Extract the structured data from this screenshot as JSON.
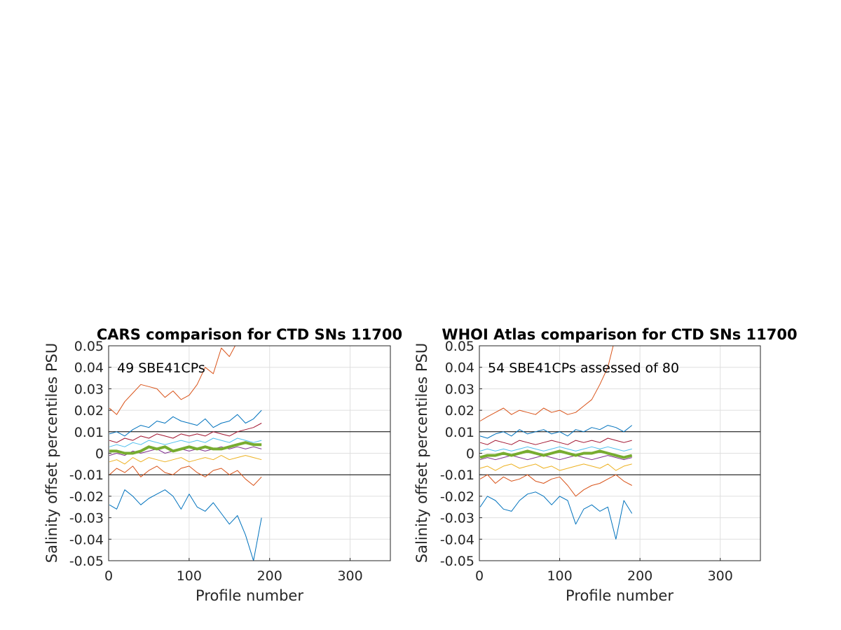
{
  "figure": {
    "background": "#ffffff"
  },
  "chart_data": [
    {
      "type": "line",
      "title": "CARS comparison for CTD SNs 11700",
      "annotation": "49 SBE41CPs",
      "xlabel": "Profile number",
      "ylabel": "Salinity offset percentiles PSU",
      "xlim": [
        0,
        350
      ],
      "ylim": [
        -0.05,
        0.05
      ],
      "xticks": [
        0,
        100,
        200,
        300
      ],
      "xtick_labels": [
        "0",
        "100",
        "200",
        "300"
      ],
      "yticks": [
        -0.05,
        -0.04,
        -0.03,
        -0.02,
        -0.01,
        0,
        0.01,
        0.02,
        0.03,
        0.04,
        0.05
      ],
      "ytick_labels": [
        "-0.05",
        "-0.04",
        "-0.03",
        "-0.02",
        "-0.01",
        "0",
        "0.01",
        "0.02",
        "0.03",
        "0.04",
        "0.05"
      ],
      "grid": true,
      "reference_lines": [
        -0.01,
        0.01
      ],
      "x": [
        1,
        10,
        20,
        30,
        40,
        50,
        60,
        70,
        80,
        90,
        100,
        110,
        120,
        130,
        140,
        150,
        160,
        170,
        180,
        190
      ],
      "series": [
        {
          "color": "#0072BD",
          "width": 1,
          "values": [
            -0.024,
            -0.026,
            -0.017,
            -0.02,
            -0.024,
            -0.021,
            -0.019,
            -0.017,
            -0.02,
            -0.026,
            -0.019,
            -0.025,
            -0.027,
            -0.023,
            -0.028,
            -0.033,
            -0.029,
            -0.038,
            -0.05,
            -0.03
          ]
        },
        {
          "color": "#D95319",
          "width": 1,
          "values": [
            -0.01,
            -0.007,
            -0.009,
            -0.006,
            -0.011,
            -0.008,
            -0.006,
            -0.009,
            -0.01,
            -0.007,
            -0.006,
            -0.009,
            -0.011,
            -0.008,
            -0.007,
            -0.01,
            -0.008,
            -0.012,
            -0.015,
            -0.011
          ]
        },
        {
          "color": "#EDB120",
          "width": 1,
          "values": [
            -0.004,
            -0.003,
            -0.005,
            -0.002,
            -0.004,
            -0.002,
            -0.003,
            -0.004,
            -0.003,
            -0.002,
            -0.004,
            -0.003,
            -0.002,
            -0.003,
            -0.001,
            -0.003,
            -0.002,
            -0.001,
            -0.002,
            -0.003
          ]
        },
        {
          "color": "#7E2F8E",
          "width": 1,
          "values": [
            -0.001,
            0.0,
            -0.001,
            0.001,
            0.0,
            0.001,
            0.002,
            0.0,
            0.001,
            0.002,
            0.001,
            0.002,
            0.001,
            0.002,
            0.003,
            0.002,
            0.003,
            0.002,
            0.003,
            0.002
          ]
        },
        {
          "color": "#4DBEEE",
          "width": 1,
          "values": [
            0.003,
            0.004,
            0.003,
            0.005,
            0.004,
            0.006,
            0.005,
            0.004,
            0.005,
            0.006,
            0.005,
            0.006,
            0.005,
            0.007,
            0.006,
            0.005,
            0.007,
            0.006,
            0.005,
            0.006
          ]
        },
        {
          "color": "#A2142F",
          "width": 1,
          "values": [
            0.006,
            0.005,
            0.007,
            0.006,
            0.008,
            0.007,
            0.009,
            0.008,
            0.007,
            0.009,
            0.008,
            0.009,
            0.008,
            0.01,
            0.009,
            0.008,
            0.01,
            0.011,
            0.012,
            0.014
          ]
        },
        {
          "color": "#0072BD",
          "width": 1,
          "values": [
            0.009,
            0.01,
            0.008,
            0.011,
            0.013,
            0.012,
            0.015,
            0.014,
            0.017,
            0.015,
            0.014,
            0.013,
            0.016,
            0.012,
            0.014,
            0.015,
            0.018,
            0.014,
            0.016,
            0.02
          ]
        },
        {
          "color": "#D95319",
          "width": 1,
          "values": [
            0.021,
            0.018,
            0.024,
            0.028,
            0.032,
            0.031,
            0.03,
            0.026,
            0.029,
            0.025,
            0.027,
            0.032,
            0.04,
            0.037,
            0.049,
            0.045,
            0.052,
            0.055,
            0.055,
            0.055
          ]
        },
        {
          "color": "#77AC30",
          "width": 4,
          "values": [
            0.001,
            0.001,
            0.0,
            0.0,
            0.001,
            0.003,
            0.002,
            0.003,
            0.001,
            0.002,
            0.003,
            0.002,
            0.003,
            0.002,
            0.002,
            0.003,
            0.004,
            0.005,
            0.004,
            0.004
          ]
        }
      ]
    },
    {
      "type": "line",
      "title": "WHOI Atlas comparison for CTD SNs 11700",
      "annotation": "54 SBE41CPs assessed of 80",
      "xlabel": "Profile number",
      "ylabel": "Salinity offset percentiles PSU",
      "xlim": [
        0,
        350
      ],
      "ylim": [
        -0.05,
        0.05
      ],
      "xticks": [
        0,
        100,
        200,
        300
      ],
      "xtick_labels": [
        "0",
        "100",
        "200",
        "300"
      ],
      "yticks": [
        -0.05,
        -0.04,
        -0.03,
        -0.02,
        -0.01,
        0,
        0.01,
        0.02,
        0.03,
        0.04,
        0.05
      ],
      "ytick_labels": [
        "-0.05",
        "-0.04",
        "-0.03",
        "-0.02",
        "-0.01",
        "0",
        "0.01",
        "0.02",
        "0.03",
        "0.04",
        "0.05"
      ],
      "grid": true,
      "reference_lines": [
        -0.01,
        0.01
      ],
      "x": [
        1,
        10,
        20,
        30,
        40,
        50,
        60,
        70,
        80,
        90,
        100,
        110,
        120,
        130,
        140,
        150,
        160,
        170,
        180,
        190
      ],
      "series": [
        {
          "color": "#0072BD",
          "width": 1,
          "values": [
            -0.025,
            -0.02,
            -0.022,
            -0.026,
            -0.027,
            -0.022,
            -0.019,
            -0.018,
            -0.02,
            -0.024,
            -0.02,
            -0.022,
            -0.033,
            -0.026,
            -0.024,
            -0.027,
            -0.025,
            -0.04,
            -0.022,
            -0.028
          ]
        },
        {
          "color": "#D95319",
          "width": 1,
          "values": [
            -0.012,
            -0.01,
            -0.014,
            -0.011,
            -0.013,
            -0.012,
            -0.01,
            -0.013,
            -0.014,
            -0.012,
            -0.011,
            -0.015,
            -0.02,
            -0.017,
            -0.015,
            -0.014,
            -0.012,
            -0.01,
            -0.013,
            -0.015
          ]
        },
        {
          "color": "#EDB120",
          "width": 1,
          "values": [
            -0.007,
            -0.006,
            -0.008,
            -0.006,
            -0.005,
            -0.007,
            -0.006,
            -0.005,
            -0.007,
            -0.006,
            -0.008,
            -0.007,
            -0.006,
            -0.005,
            -0.006,
            -0.007,
            -0.005,
            -0.008,
            -0.006,
            -0.005
          ]
        },
        {
          "color": "#7E2F8E",
          "width": 1,
          "values": [
            -0.003,
            -0.002,
            -0.003,
            -0.002,
            -0.001,
            -0.002,
            -0.003,
            -0.002,
            -0.001,
            -0.002,
            -0.003,
            -0.002,
            -0.001,
            -0.002,
            -0.003,
            -0.002,
            -0.001,
            -0.002,
            -0.003,
            -0.002
          ]
        },
        {
          "color": "#4DBEEE",
          "width": 1,
          "values": [
            0.001,
            0.002,
            0.001,
            0.002,
            0.001,
            0.002,
            0.003,
            0.002,
            0.001,
            0.002,
            0.003,
            0.002,
            0.001,
            0.002,
            0.003,
            0.002,
            0.003,
            0.002,
            0.001,
            0.002
          ]
        },
        {
          "color": "#A2142F",
          "width": 1,
          "values": [
            0.005,
            0.004,
            0.006,
            0.005,
            0.004,
            0.006,
            0.005,
            0.004,
            0.005,
            0.006,
            0.005,
            0.004,
            0.006,
            0.005,
            0.006,
            0.005,
            0.007,
            0.006,
            0.005,
            0.006
          ]
        },
        {
          "color": "#0072BD",
          "width": 1,
          "values": [
            0.008,
            0.007,
            0.009,
            0.01,
            0.008,
            0.011,
            0.009,
            0.01,
            0.011,
            0.009,
            0.01,
            0.008,
            0.011,
            0.01,
            0.012,
            0.011,
            0.013,
            0.012,
            0.01,
            0.013
          ]
        },
        {
          "color": "#D95319",
          "width": 1,
          "values": [
            0.015,
            0.017,
            0.019,
            0.021,
            0.018,
            0.02,
            0.019,
            0.018,
            0.021,
            0.019,
            0.02,
            0.018,
            0.019,
            0.022,
            0.025,
            0.032,
            0.04,
            0.055,
            0.055,
            0.055
          ]
        },
        {
          "color": "#77AC30",
          "width": 4,
          "values": [
            -0.002,
            -0.001,
            -0.001,
            0.0,
            -0.001,
            0.0,
            0.001,
            0.0,
            -0.001,
            0.0,
            0.001,
            0.0,
            -0.001,
            0.0,
            0.0,
            0.001,
            0.0,
            -0.001,
            -0.002,
            -0.001
          ]
        }
      ]
    }
  ]
}
